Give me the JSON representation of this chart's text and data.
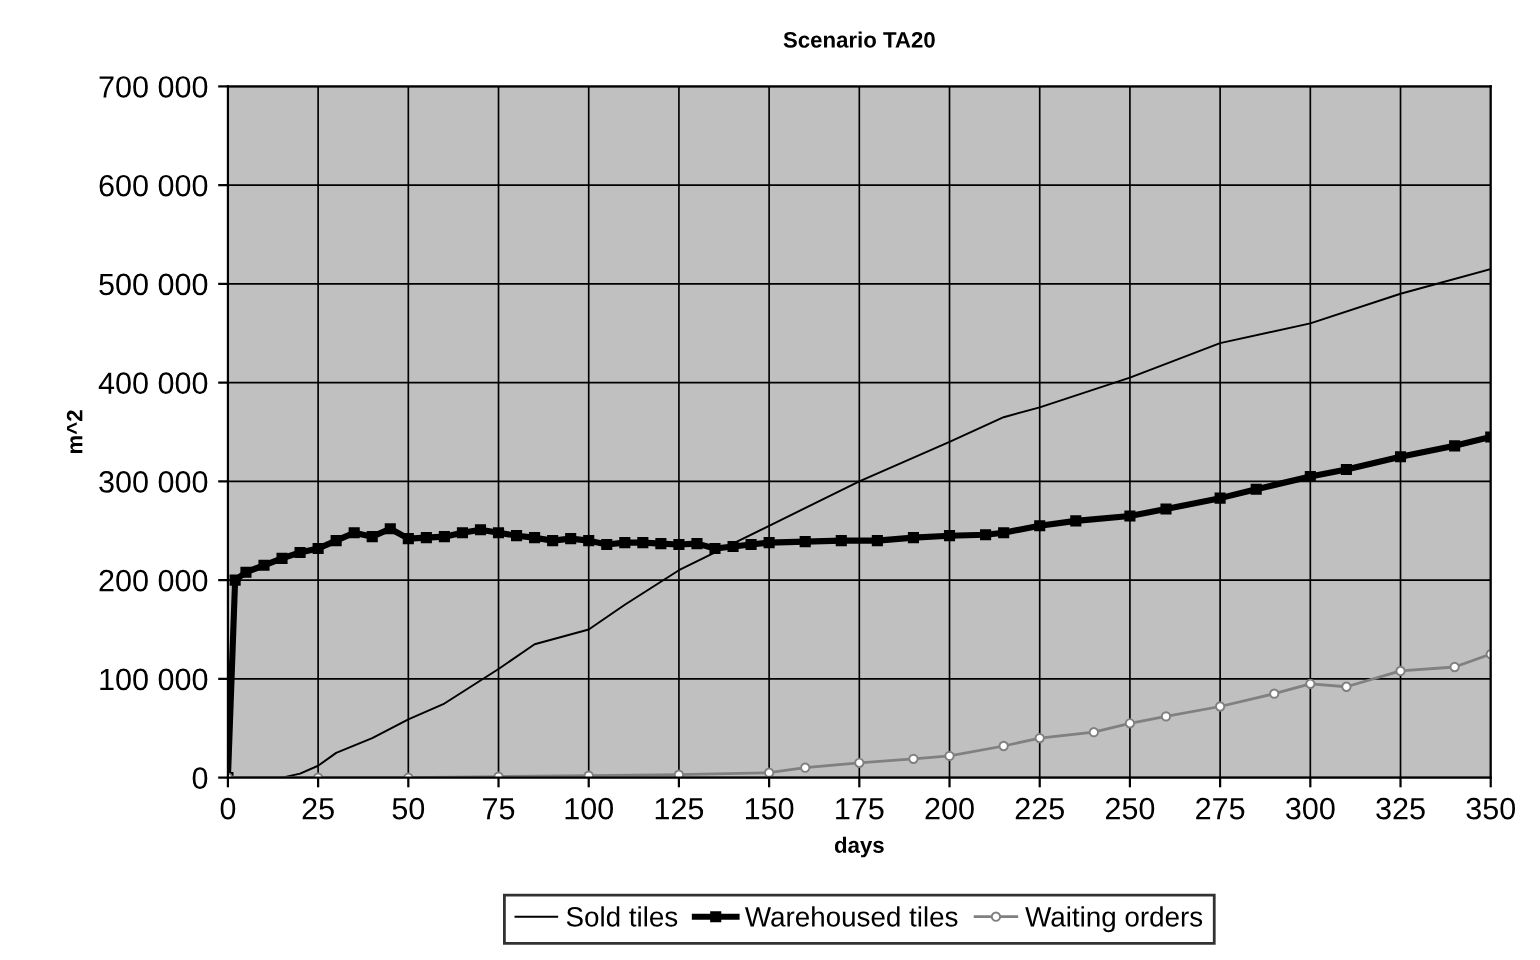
{
  "chart_data": {
    "type": "line",
    "title": "Scenario TA20",
    "xlabel": "days",
    "ylabel": "m^2",
    "xlim": [
      0,
      350
    ],
    "xticks": [
      0,
      25,
      50,
      75,
      100,
      125,
      150,
      175,
      200,
      225,
      250,
      275,
      300,
      325,
      350
    ],
    "ylim": [
      0,
      700000
    ],
    "yticks": [
      {
        "value": 0,
        "label": "0"
      },
      {
        "value": 100000,
        "label": "100 000"
      },
      {
        "value": 200000,
        "label": "200 000"
      },
      {
        "value": 300000,
        "label": "300 000"
      },
      {
        "value": 400000,
        "label": "400 000"
      },
      {
        "value": 500000,
        "label": "500 000"
      },
      {
        "value": 600000,
        "label": "600 000"
      },
      {
        "value": 700000,
        "label": "700 000"
      }
    ],
    "grid": true,
    "legend": "bottom",
    "series": [
      {
        "name": "Sold tiles",
        "color": "#000000",
        "marker": "none",
        "x": [
          0,
          15,
          20,
          25,
          30,
          40,
          50,
          60,
          75,
          85,
          100,
          110,
          125,
          150,
          175,
          200,
          215,
          225,
          250,
          275,
          300,
          325,
          350
        ],
        "values": [
          0,
          0,
          4000,
          12000,
          25000,
          40000,
          59000,
          75000,
          110000,
          135000,
          150000,
          175000,
          210000,
          255000,
          300000,
          340000,
          365000,
          375000,
          405000,
          440000,
          460000,
          490000,
          515000
        ]
      },
      {
        "name": "Warehoused tiles",
        "color": "#000000",
        "marker": "square",
        "x": [
          0,
          2,
          5,
          10,
          15,
          20,
          25,
          30,
          35,
          40,
          45,
          50,
          55,
          60,
          65,
          70,
          75,
          80,
          85,
          90,
          95,
          100,
          105,
          110,
          115,
          120,
          125,
          130,
          135,
          140,
          145,
          150,
          160,
          170,
          180,
          190,
          200,
          210,
          215,
          225,
          235,
          250,
          260,
          275,
          285,
          300,
          310,
          325,
          340,
          350
        ],
        "values": [
          0,
          200000,
          208000,
          215000,
          222000,
          228000,
          232000,
          240000,
          248000,
          244000,
          252000,
          242000,
          243000,
          244000,
          248000,
          251000,
          248000,
          245000,
          243000,
          240000,
          242000,
          240000,
          236000,
          238000,
          238000,
          237000,
          236000,
          237000,
          232000,
          234000,
          236000,
          238000,
          239000,
          240000,
          240000,
          243000,
          245000,
          246000,
          248000,
          255000,
          260000,
          265000,
          272000,
          283000,
          292000,
          305000,
          312000,
          325000,
          336000,
          345000
        ]
      },
      {
        "name": "Waiting orders",
        "color": "#808080",
        "marker": "circle",
        "x": [
          0,
          25,
          50,
          75,
          100,
          125,
          150,
          160,
          175,
          190,
          200,
          215,
          225,
          240,
          250,
          260,
          275,
          290,
          300,
          310,
          325,
          340,
          350
        ],
        "values": [
          0,
          0,
          0,
          1000,
          2000,
          3000,
          5000,
          10000,
          15000,
          19000,
          22000,
          32000,
          40000,
          46000,
          55000,
          62000,
          72000,
          85000,
          95000,
          92000,
          108000,
          112000,
          125000
        ]
      }
    ]
  }
}
